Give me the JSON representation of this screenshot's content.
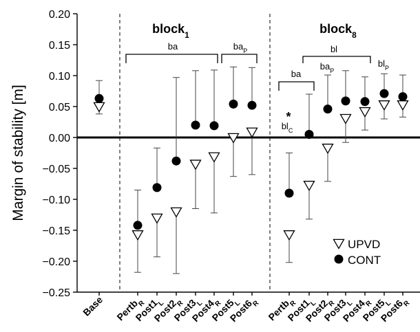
{
  "chart_data": {
    "type": "scatter",
    "ylabel": "Margin of stability [m]",
    "xlabel": "",
    "ylim": [
      -0.25,
      0.2
    ],
    "yticks": [
      "0.20",
      "0.15",
      "0.10",
      "0.05",
      "0.00",
      "−0.05",
      "−0.10",
      "−0.15",
      "−0.20",
      "−0.25"
    ],
    "ytick_values": [
      0.2,
      0.15,
      0.1,
      0.05,
      0.0,
      -0.05,
      -0.1,
      -0.15,
      -0.2,
      -0.25
    ],
    "categories": [
      {
        "main": "Base",
        "sub": ""
      },
      {
        "main": "Pertb",
        "sub": "R"
      },
      {
        "main": "Post1",
        "sub": "L"
      },
      {
        "main": "Post2",
        "sub": "R"
      },
      {
        "main": "Post3",
        "sub": "L"
      },
      {
        "main": "Post4",
        "sub": "R"
      },
      {
        "main": "Post5",
        "sub": "L"
      },
      {
        "main": "Post6",
        "sub": "R"
      },
      {
        "main": "Pertb",
        "sub": "R"
      },
      {
        "main": "Post1",
        "sub": "L"
      },
      {
        "main": "Post2",
        "sub": "R"
      },
      {
        "main": "Post3",
        "sub": "L"
      },
      {
        "main": "Post4",
        "sub": "R"
      },
      {
        "main": "Post5",
        "sub": "L"
      },
      {
        "main": "Post6",
        "sub": "R"
      }
    ],
    "blocks": [
      {
        "main": "block",
        "sub": "1"
      },
      {
        "main": "block",
        "sub": "8"
      }
    ],
    "series": [
      {
        "name": "UPVD",
        "marker": "triangle-down-open",
        "values": [
          0.05,
          -0.157,
          -0.13,
          -0.12,
          -0.043,
          -0.031,
          0.0,
          0.009,
          -0.157,
          -0.077,
          -0.017,
          0.031,
          0.042,
          0.053,
          0.053
        ],
        "err_low": [
          0.038,
          -0.218,
          -0.193,
          -0.22,
          -0.115,
          -0.122,
          -0.063,
          -0.06,
          -0.202,
          -0.132,
          -0.071,
          -0.008,
          0.012,
          0.03,
          0.033
        ],
        "err_high": null
      },
      {
        "name": "CONT",
        "marker": "circle-filled",
        "values": [
          0.063,
          -0.142,
          -0.081,
          -0.038,
          0.02,
          0.019,
          0.054,
          0.052,
          -0.09,
          0.005,
          0.046,
          0.059,
          0.058,
          0.071,
          0.066
        ],
        "err_low": null,
        "err_high": [
          0.092,
          -0.085,
          -0.017,
          0.097,
          0.108,
          0.109,
          0.114,
          0.113,
          -0.025,
          0.07,
          0.101,
          0.108,
          0.098,
          0.103,
          0.101
        ]
      }
    ],
    "annotations": {
      "b1_ba": "ba",
      "b1_bap": {
        "main": "ba",
        "sub": "P"
      },
      "b8_ba": "ba",
      "b8_bl": "bl",
      "b8_bap": {
        "main": "ba",
        "sub": "P"
      },
      "b8_blp": {
        "main": "bl",
        "sub": "P"
      },
      "b8_blc": {
        "main": "bl",
        "sub": "C"
      },
      "star": "*"
    },
    "legend_placement": "bottom-right",
    "grid": false
  }
}
